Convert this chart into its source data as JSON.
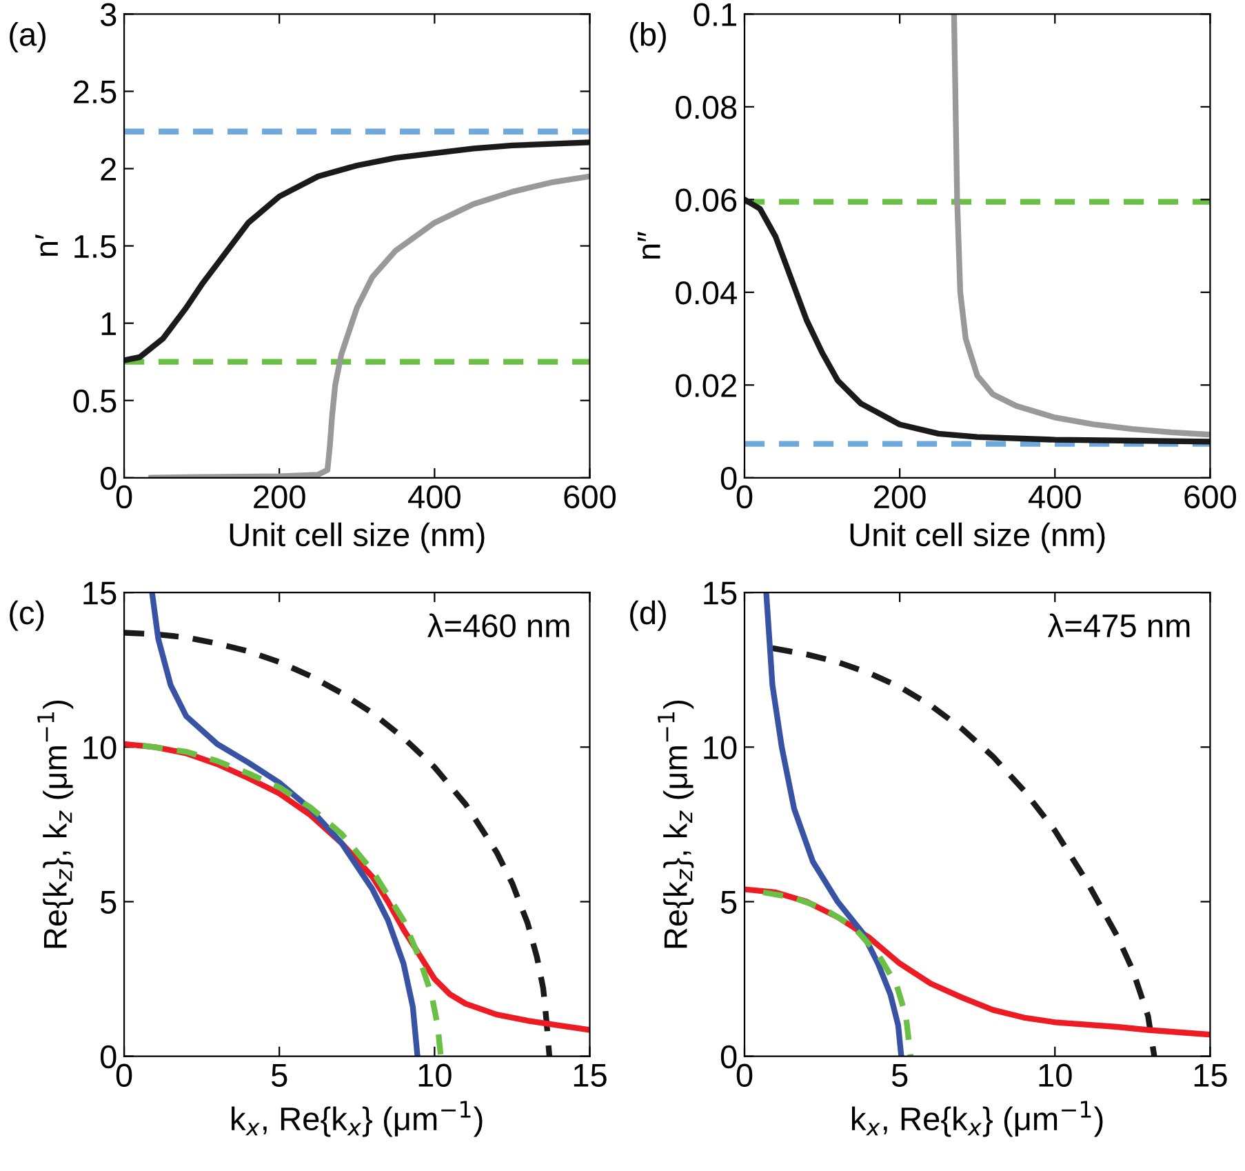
{
  "chart_data": [
    {
      "type": "line",
      "title": "(a)",
      "xlabel": "Unit cell size (nm)",
      "ylabel": "n′",
      "xlim": [
        0,
        600
      ],
      "xticks": [
        0,
        200,
        400,
        600
      ],
      "ylim": [
        0,
        3
      ],
      "yticks": [
        0,
        0.5,
        1,
        1.5,
        2,
        2.5,
        3
      ],
      "grid": false,
      "legend": false,
      "marker": "none",
      "series": [
        {
          "color": "#1a1a1a",
          "line_style": "solid",
          "x": [
            0,
            20,
            50,
            80,
            100,
            130,
            160,
            200,
            250,
            300,
            350,
            400,
            450,
            500,
            550,
            600
          ],
          "values": [
            0.76,
            0.78,
            0.9,
            1.1,
            1.25,
            1.45,
            1.65,
            1.82,
            1.95,
            2.02,
            2.07,
            2.1,
            2.13,
            2.15,
            2.16,
            2.17
          ]
        },
        {
          "color": "#999999",
          "line_style": "solid",
          "x": [
            35,
            100,
            200,
            250,
            262,
            265,
            268,
            272,
            280,
            290,
            300,
            320,
            350,
            400,
            450,
            500,
            550,
            600
          ],
          "values": [
            0.0,
            0.005,
            0.01,
            0.02,
            0.05,
            0.2,
            0.4,
            0.6,
            0.8,
            0.95,
            1.1,
            1.3,
            1.47,
            1.65,
            1.77,
            1.85,
            1.91,
            1.95
          ]
        }
      ],
      "ref_lines": [
        {
          "axis": "y",
          "value": 2.24,
          "color": "#6fa8dc",
          "line_style": "dashed"
        },
        {
          "axis": "y",
          "value": 0.75,
          "color": "#6abf45",
          "line_style": "dashed"
        }
      ]
    },
    {
      "type": "line",
      "title": "(b)",
      "xlabel": "Unit cell size (nm)",
      "ylabel": "n″",
      "xlim": [
        0,
        600
      ],
      "xticks": [
        0,
        200,
        400,
        600
      ],
      "ylim": [
        0,
        0.1
      ],
      "yticks": [
        0,
        0.02,
        0.04,
        0.06,
        0.08,
        0.1
      ],
      "grid": false,
      "legend": false,
      "marker": "none",
      "series": [
        {
          "color": "#1a1a1a",
          "line_style": "solid",
          "x": [
            0,
            20,
            40,
            60,
            80,
            100,
            120,
            150,
            200,
            250,
            300,
            400,
            500,
            600
          ],
          "values": [
            0.06,
            0.058,
            0.052,
            0.043,
            0.034,
            0.027,
            0.021,
            0.016,
            0.0115,
            0.0095,
            0.0088,
            0.0082,
            0.008,
            0.0078
          ]
        },
        {
          "color": "#999999",
          "line_style": "solid",
          "x": [
            270,
            272,
            274,
            278,
            285,
            300,
            320,
            350,
            400,
            450,
            500,
            550,
            600
          ],
          "values": [
            0.1,
            0.08,
            0.06,
            0.04,
            0.03,
            0.022,
            0.018,
            0.0155,
            0.013,
            0.0115,
            0.0105,
            0.0098,
            0.0093
          ]
        }
      ],
      "ref_lines": [
        {
          "axis": "y",
          "value": 0.0595,
          "color": "#6abf45",
          "line_style": "dashed"
        },
        {
          "axis": "y",
          "value": 0.0073,
          "color": "#6fa8dc",
          "line_style": "dashed"
        }
      ]
    },
    {
      "type": "line",
      "title": "(c)",
      "xlabel": "k$_{x}$, Re{k$_{x}$} (μm$^{−1}$)",
      "ylabel": "Re{k$_{z}$}, k$_{z}$ (μm$^{−1}$)",
      "annotations": [
        "λ=460 nm"
      ],
      "xlim": [
        0,
        15
      ],
      "xticks": [
        0,
        5,
        10,
        15
      ],
      "ylim": [
        0,
        15
      ],
      "yticks": [
        0,
        5,
        10,
        15
      ],
      "grid": false,
      "legend": false,
      "marker": "none",
      "series": [
        {
          "color": "#1a1a1a",
          "line_style": "dashed",
          "x": [
            0,
            1,
            2,
            3,
            4,
            5,
            6,
            7,
            8,
            9,
            10,
            11,
            12,
            12.5,
            13,
            13.3,
            13.5,
            13.6,
            13.7
          ],
          "values": [
            13.7,
            13.65,
            13.55,
            13.35,
            13.1,
            12.75,
            12.3,
            11.75,
            11.1,
            10.3,
            9.35,
            8.15,
            6.6,
            5.6,
            4.3,
            3.2,
            2.2,
            1.2,
            0
          ]
        },
        {
          "color": "#ed1c24",
          "line_style": "solid",
          "x": [
            0,
            1,
            2,
            3,
            4,
            5,
            6,
            7,
            8,
            8.5,
            9,
            9.5,
            10,
            10.5,
            11,
            12,
            13,
            14,
            15
          ],
          "values": [
            10.1,
            10.0,
            9.8,
            9.45,
            9.0,
            8.5,
            7.8,
            6.9,
            5.8,
            5.0,
            4.1,
            3.3,
            2.5,
            2.0,
            1.7,
            1.35,
            1.15,
            1.0,
            0.85
          ]
        },
        {
          "color": "#3953a4",
          "line_style": "solid",
          "x": [
            0.9,
            1.1,
            1.5,
            2,
            3,
            4,
            5,
            6,
            7,
            8,
            8.5,
            9,
            9.3,
            9.45
          ],
          "values": [
            15,
            13.5,
            12,
            11,
            10.1,
            9.5,
            8.85,
            8.0,
            6.9,
            5.4,
            4.4,
            3.0,
            1.6,
            0
          ]
        },
        {
          "color": "#6abf45",
          "line_style": "dashed",
          "x": [
            0.6,
            2,
            3,
            4,
            5,
            6,
            7,
            8,
            9,
            9.5,
            9.9,
            10.1,
            10.2
          ],
          "values": [
            10.05,
            9.85,
            9.55,
            9.15,
            8.7,
            8.05,
            7.2,
            6.0,
            4.4,
            3.2,
            2.0,
            1.0,
            0
          ]
        }
      ]
    },
    {
      "type": "line",
      "title": "(d)",
      "xlabel": "k$_{x}$, Re{k$_{x}$} (μm$^{−1}$)",
      "ylabel": "Re{k$_{z}$}, k$_{z}$ (μm$^{−1}$)",
      "annotations": [
        "λ=475 nm"
      ],
      "xlim": [
        0,
        15
      ],
      "xticks": [
        0,
        5,
        10,
        15
      ],
      "ylim": [
        0,
        15
      ],
      "yticks": [
        0,
        5,
        10,
        15
      ],
      "grid": false,
      "legend": false,
      "marker": "none",
      "series": [
        {
          "color": "#1a1a1a",
          "line_style": "dashed",
          "x": [
            0.9,
            2,
            3,
            4,
            5,
            6,
            7,
            8,
            9,
            10,
            11,
            12,
            12.5,
            13,
            13.2
          ],
          "values": [
            13.2,
            13.0,
            12.75,
            12.4,
            11.95,
            11.35,
            10.6,
            9.7,
            8.6,
            7.3,
            5.7,
            3.9,
            2.8,
            1.3,
            0
          ]
        },
        {
          "color": "#ed1c24",
          "line_style": "solid",
          "x": [
            0,
            1,
            2,
            3,
            4,
            5,
            6,
            7,
            8,
            9,
            10,
            12,
            13,
            15
          ],
          "values": [
            5.4,
            5.3,
            5.0,
            4.5,
            3.85,
            3.0,
            2.35,
            1.9,
            1.5,
            1.25,
            1.1,
            0.95,
            0.85,
            0.7
          ]
        },
        {
          "color": "#3953a4",
          "line_style": "solid",
          "x": [
            0.7,
            0.9,
            1.2,
            1.6,
            2.2,
            3,
            3.8,
            4.3,
            4.7,
            4.95,
            5.05
          ],
          "values": [
            15,
            12,
            10,
            8,
            6.3,
            5.0,
            4.0,
            3.0,
            2.0,
            1.0,
            0
          ]
        },
        {
          "color": "#6abf45",
          "line_style": "dashed",
          "x": [
            0.6,
            1.5,
            2.5,
            3.5,
            4.3,
            4.9,
            5.2,
            5.35
          ],
          "values": [
            5.3,
            5.15,
            4.8,
            4.2,
            3.3,
            2.3,
            1.3,
            0
          ]
        }
      ]
    }
  ]
}
